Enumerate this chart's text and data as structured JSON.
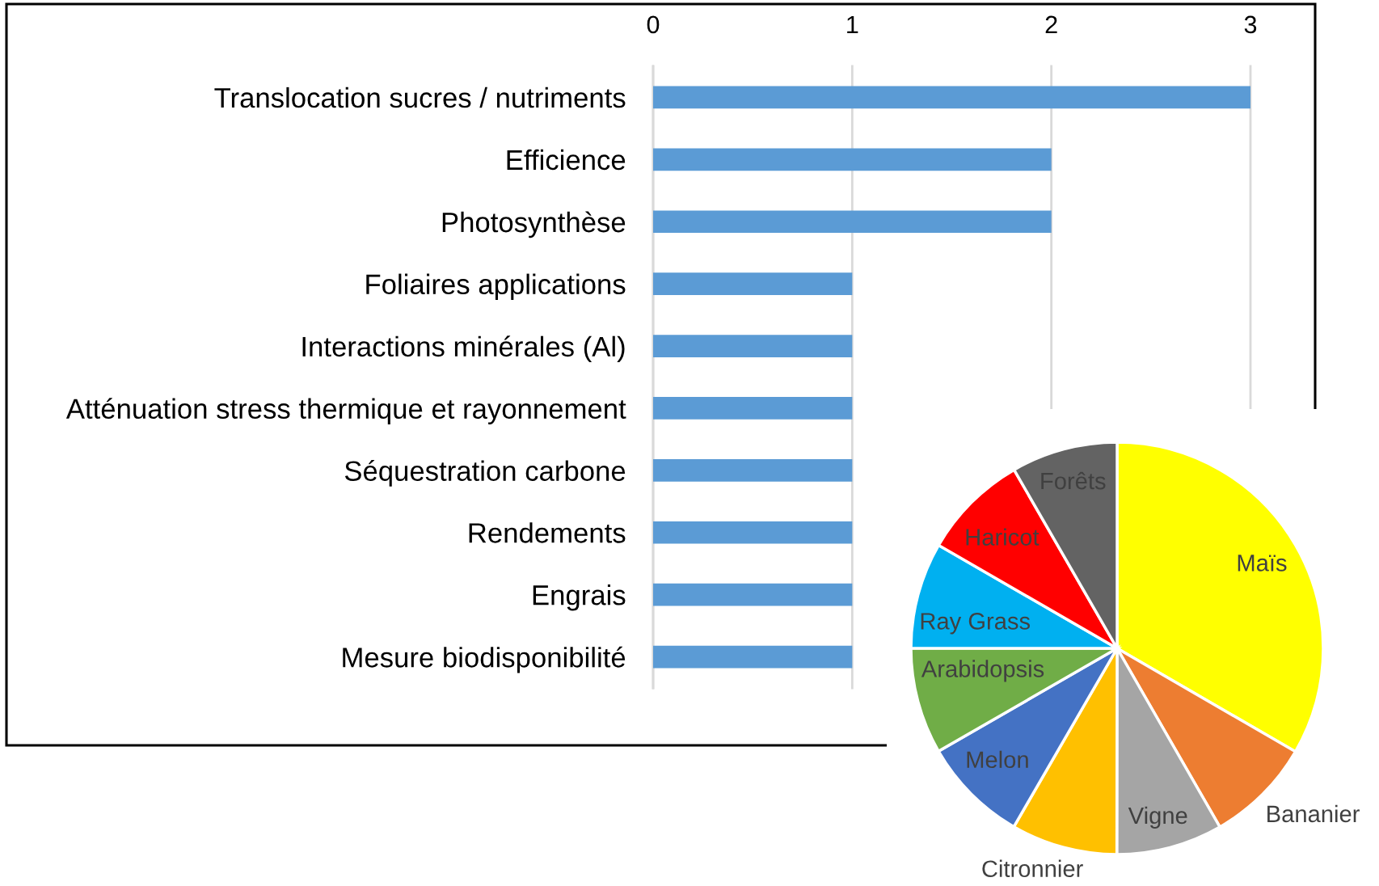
{
  "chart_data": [
    {
      "type": "bar",
      "orientation": "horizontal",
      "categories": [
        "Translocation sucres / nutriments",
        "Efficience",
        "Photosynthèse",
        "Foliaires applications",
        "Interactions minérales (Al)",
        "Atténuation stress thermique et rayonnement",
        "Séquestration carbone",
        "Rendements",
        "Engrais",
        "Mesure biodisponibilité"
      ],
      "values": [
        3,
        2,
        2,
        1,
        1,
        1,
        1,
        1,
        1,
        1
      ],
      "color": "#5b9bd5",
      "xlim": [
        0,
        3
      ],
      "xticks": [
        0,
        1,
        2,
        3
      ],
      "grid": "x"
    },
    {
      "type": "pie",
      "categories": [
        "Maïs",
        "Bananier",
        "Vigne",
        "Citronnier",
        "Melon",
        "Arabidopsis",
        "Ray Grass",
        "Haricot",
        "Forêts"
      ],
      "values": [
        33.36,
        8.33,
        8.33,
        8.33,
        8.33,
        8.33,
        8.33,
        8.33,
        8.33
      ],
      "colors": [
        "#ffff00",
        "#ed7d31",
        "#a5a5a5",
        "#ffc000",
        "#4472c4",
        "#70ad47",
        "#00b0f0",
        "#ff0000",
        "#636363"
      ]
    }
  ]
}
